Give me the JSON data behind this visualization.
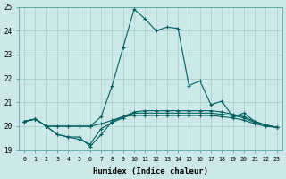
{
  "xlabel": "Humidex (Indice chaleur)",
  "ylabel": "",
  "bg_color": "#cce8e8",
  "grid_color": "#b0d0d0",
  "line_color": "#006060",
  "xlim": [
    -0.5,
    23.5
  ],
  "ylim": [
    19,
    25
  ],
  "yticks": [
    19,
    20,
    21,
    22,
    23,
    24,
    25
  ],
  "xticks": [
    0,
    1,
    2,
    3,
    4,
    5,
    6,
    7,
    8,
    9,
    10,
    11,
    12,
    13,
    14,
    15,
    16,
    17,
    18,
    19,
    20,
    21,
    22,
    23
  ],
  "series": [
    [
      20.2,
      20.3,
      20.0,
      19.65,
      19.55,
      19.55,
      19.15,
      19.65,
      20.2,
      20.4,
      20.45,
      20.45,
      20.45,
      20.45,
      20.45,
      20.45,
      20.45,
      20.45,
      20.4,
      20.35,
      20.25,
      20.1,
      20.0,
      19.95
    ],
    [
      20.2,
      20.3,
      20.0,
      19.65,
      19.55,
      19.45,
      19.25,
      19.9,
      20.15,
      20.35,
      20.55,
      20.55,
      20.55,
      20.55,
      20.55,
      20.55,
      20.55,
      20.55,
      20.5,
      20.45,
      20.35,
      20.15,
      20.05,
      19.95
    ],
    [
      20.2,
      20.3,
      20.0,
      20.0,
      20.0,
      20.0,
      20.0,
      20.1,
      20.25,
      20.4,
      20.6,
      20.65,
      20.65,
      20.65,
      20.65,
      20.65,
      20.65,
      20.65,
      20.6,
      20.5,
      20.4,
      20.2,
      20.05,
      19.95
    ],
    [
      20.2,
      20.3,
      20.0,
      20.0,
      20.0,
      20.0,
      20.0,
      20.4,
      21.7,
      23.3,
      24.9,
      24.5,
      24.0,
      24.15,
      24.1,
      21.7,
      21.9,
      20.9,
      21.05,
      20.4,
      20.55,
      20.2,
      20.05,
      19.95
    ]
  ]
}
